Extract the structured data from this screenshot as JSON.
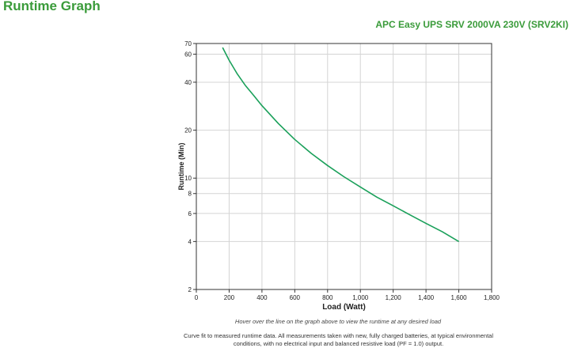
{
  "page_title": "Runtime Graph",
  "product_title": "APC Easy UPS SRV 2000VA 230V (SRV2KI)",
  "hover_note": "Hover over the line on the graph above to view the runtime at any desired load",
  "fit_note_line1": "Curve fit to measured runtime data. All measurements taken with new, fully charged batteries, at typical environmental",
  "fit_note_line2": "conditions, with no electrical input and balanced resistive load (PF = 1.0) output.",
  "colors": {
    "title": "#3a9b3a",
    "series": "#1aa05a",
    "grid": "#d4d4d4",
    "axis": "#333333"
  },
  "chart_data": {
    "type": "line",
    "xlabel": "Load (Watt)",
    "ylabel": "Runtime (Min)",
    "xlim": [
      0,
      1800
    ],
    "ylim": [
      2,
      70
    ],
    "yscale": "log",
    "grid": true,
    "x_ticks": [
      0,
      200,
      400,
      600,
      800,
      1000,
      1200,
      1400,
      1600,
      1800
    ],
    "x_tick_labels": [
      "0",
      "200",
      "400",
      "600",
      "800",
      "1,000",
      "1,200",
      "1,400",
      "1,600",
      "1,800"
    ],
    "y_ticks": [
      2,
      4,
      6,
      8,
      10,
      20,
      40,
      60,
      70
    ],
    "y_tick_labels": [
      "2",
      "4",
      "6",
      "8",
      "10",
      "20",
      "40",
      "60",
      "70"
    ],
    "series": [
      {
        "x": [
          160,
          200,
          250,
          300,
          350,
          400,
          500,
          600,
          700,
          800,
          900,
          1000,
          1100,
          1200,
          1300,
          1400,
          1500,
          1600
        ],
        "y": [
          66,
          55,
          45,
          38,
          33,
          28.5,
          22,
          17.5,
          14.3,
          12,
          10.2,
          8.8,
          7.6,
          6.7,
          5.9,
          5.2,
          4.6,
          4.0
        ]
      }
    ]
  }
}
